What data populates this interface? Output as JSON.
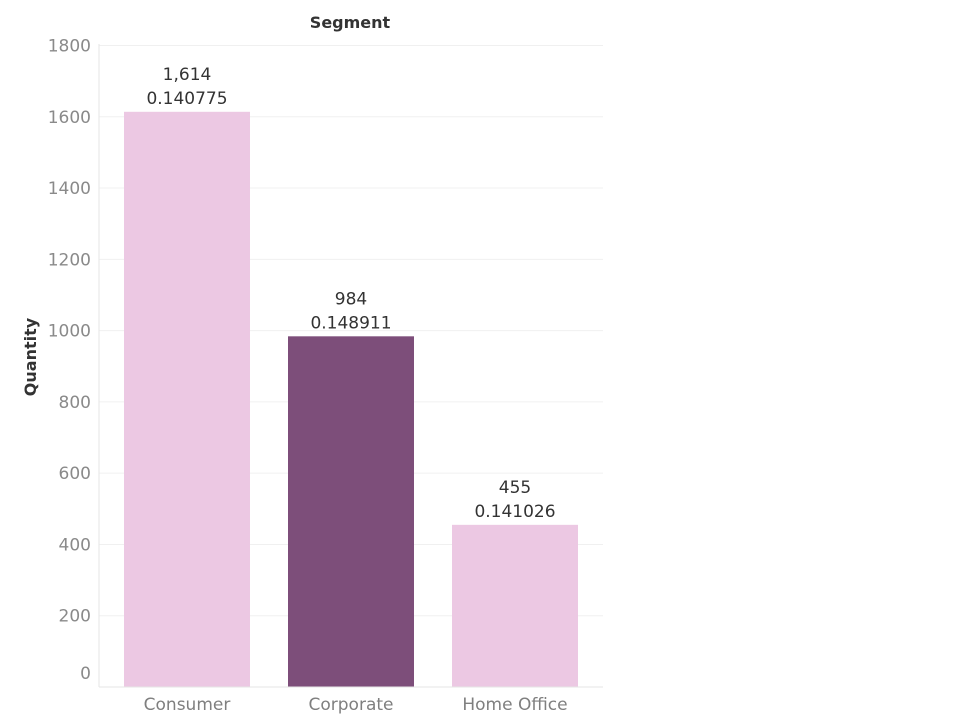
{
  "chart_data": {
    "type": "bar",
    "header": "Segment",
    "ylabel": "Quantity",
    "categories": [
      "Consumer",
      "Corporate",
      "Home Office"
    ],
    "values": [
      1614,
      984,
      455
    ],
    "value_labels": [
      "1,614",
      "984",
      "455"
    ],
    "secondary_labels": [
      "0.140775",
      "0.148911",
      "0.141026"
    ],
    "bar_colors": [
      "#ecc8e3",
      "#7d4e7a",
      "#ecc8e3"
    ],
    "ylim": [
      0,
      1800
    ],
    "yticks": [
      0,
      200,
      400,
      600,
      800,
      1000,
      1200,
      1400,
      1600,
      1800
    ],
    "grid": true
  }
}
